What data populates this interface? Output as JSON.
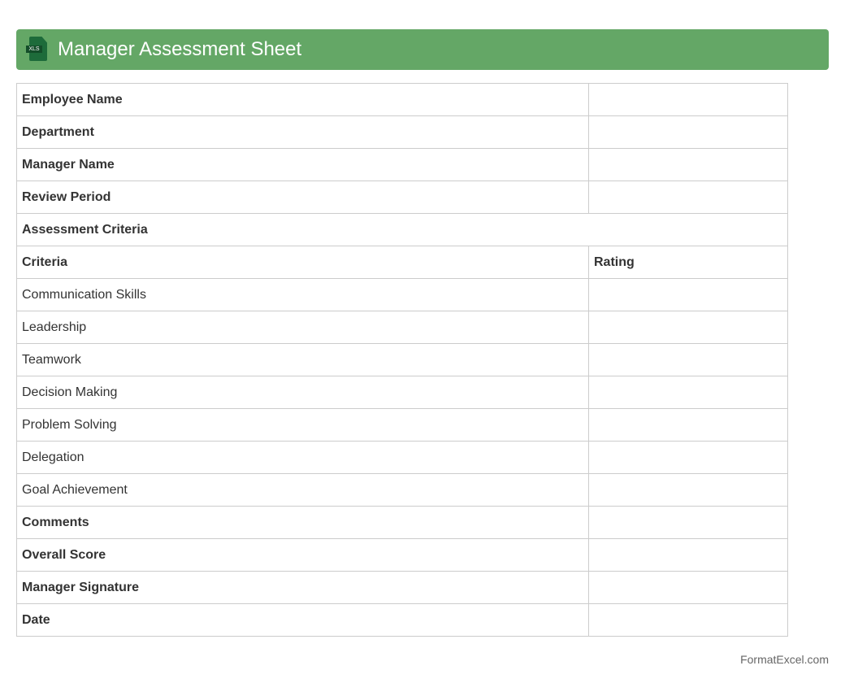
{
  "header": {
    "title": "Manager Assessment Sheet",
    "icon": "xls-file-icon",
    "icon_label": "XLS",
    "color": "#64a766"
  },
  "info_rows": [
    {
      "label": "Employee Name",
      "value": ""
    },
    {
      "label": "Department",
      "value": ""
    },
    {
      "label": "Manager Name",
      "value": ""
    },
    {
      "label": "Review Period",
      "value": ""
    }
  ],
  "section_title": "Assessment Criteria",
  "columns": {
    "criteria": "Criteria",
    "rating": "Rating"
  },
  "criteria": [
    {
      "label": "Communication Skills",
      "rating": ""
    },
    {
      "label": "Leadership",
      "rating": ""
    },
    {
      "label": "Teamwork",
      "rating": ""
    },
    {
      "label": "Decision Making",
      "rating": ""
    },
    {
      "label": "Problem Solving",
      "rating": ""
    },
    {
      "label": "Delegation",
      "rating": ""
    },
    {
      "label": "Goal Achievement",
      "rating": ""
    }
  ],
  "footer_rows": [
    {
      "label": "Comments",
      "value": ""
    },
    {
      "label": "Overall Score",
      "value": ""
    },
    {
      "label": "Manager Signature",
      "value": ""
    },
    {
      "label": "Date",
      "value": ""
    }
  ],
  "footer": "FormatExcel.com"
}
